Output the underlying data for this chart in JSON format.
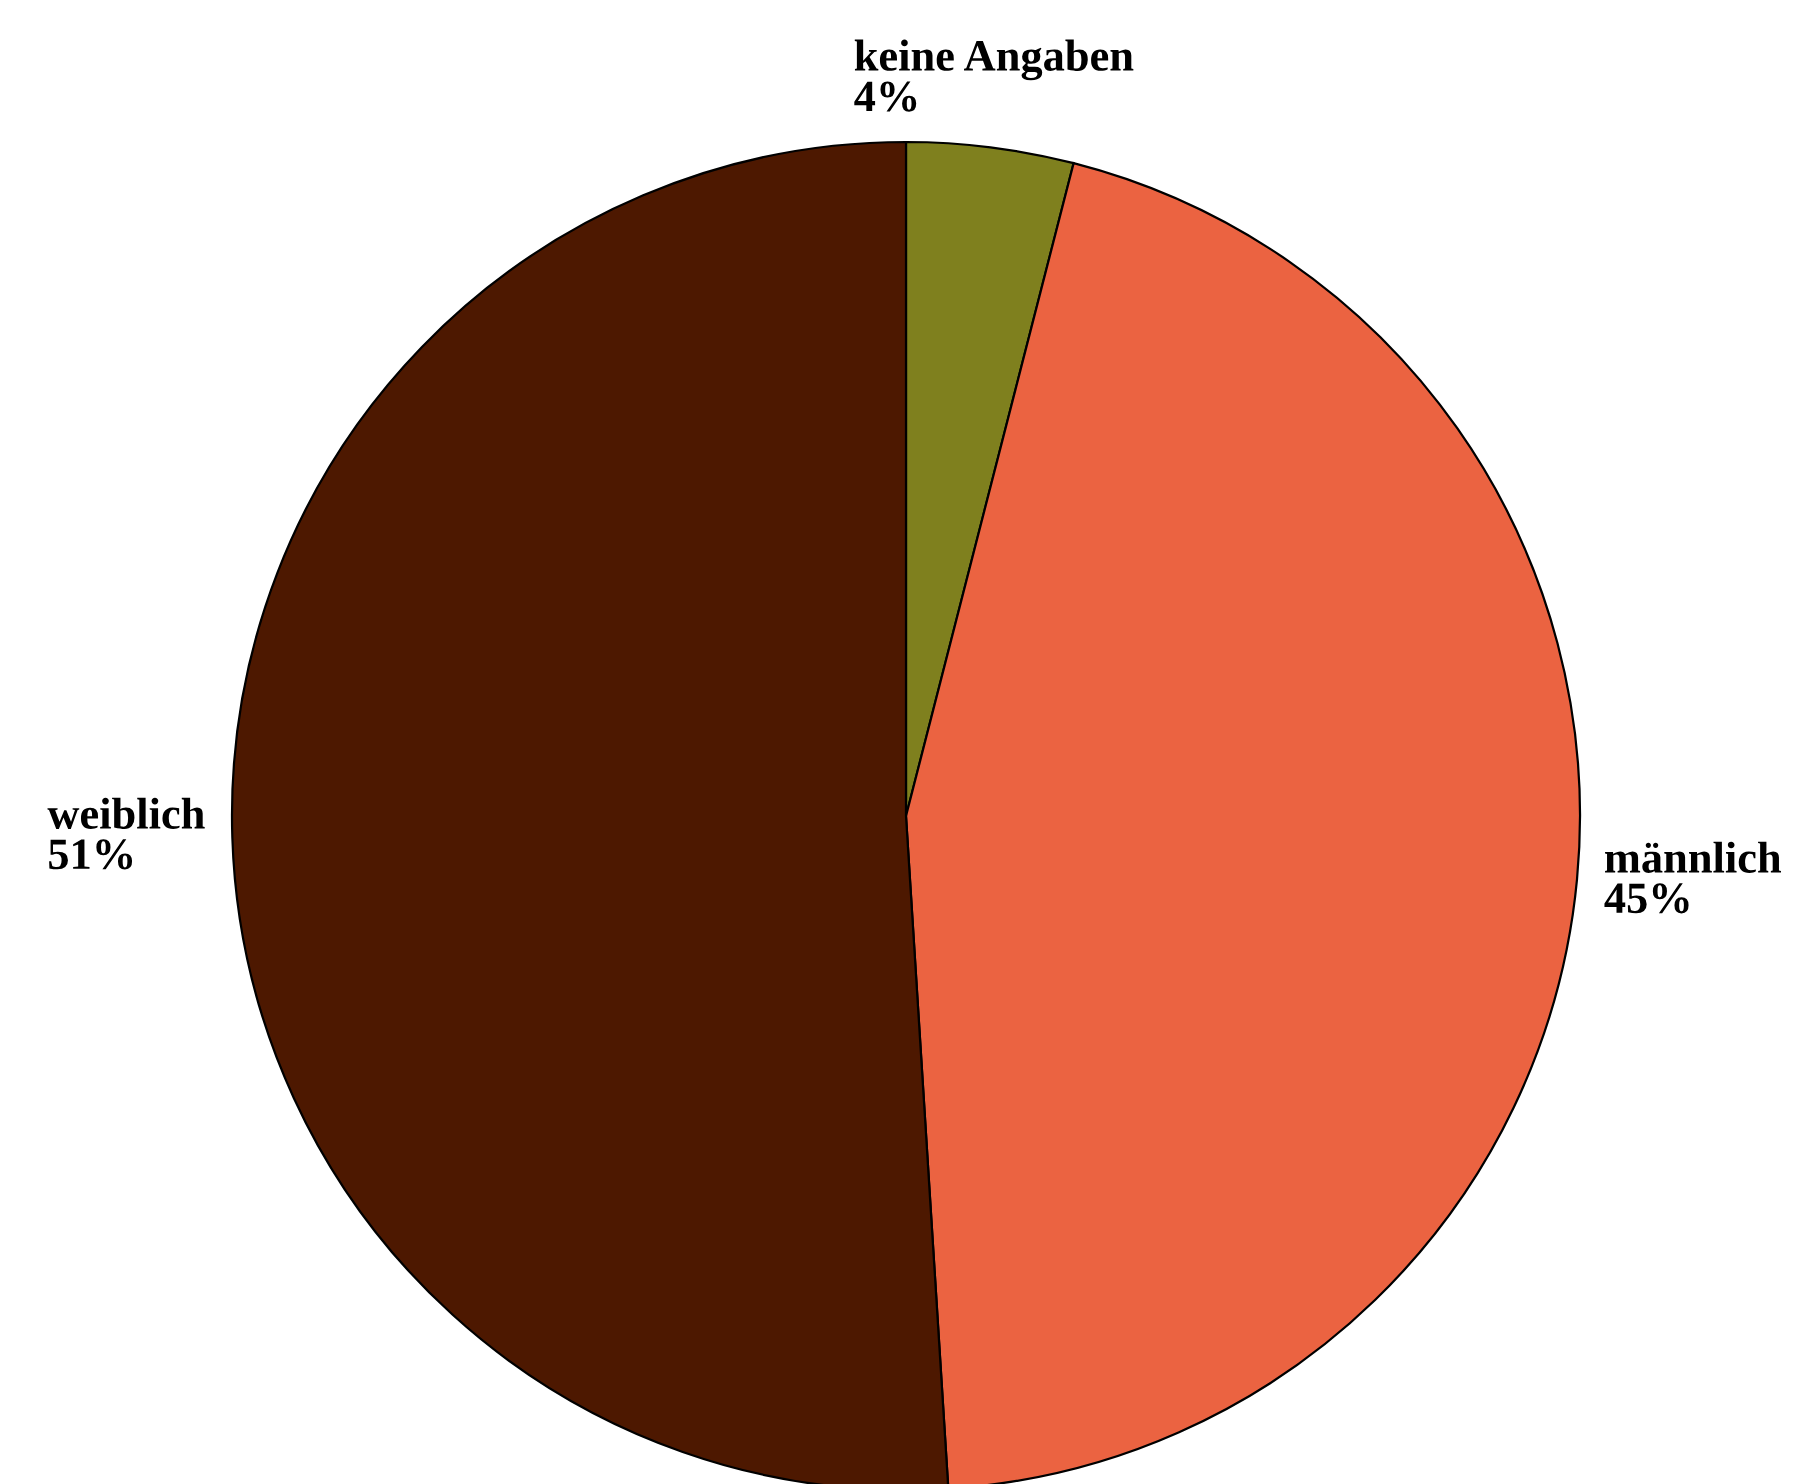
{
  "chart_data": {
    "type": "pie",
    "categories": [
      "keine Angaben",
      "männlich",
      "weiblich"
    ],
    "values": [
      4,
      45,
      51
    ],
    "colors": [
      "#7f801e",
      "#eb6341",
      "#4d1800"
    ],
    "value_labels": [
      "4%",
      "45%",
      "51%"
    ],
    "legend": false
  }
}
